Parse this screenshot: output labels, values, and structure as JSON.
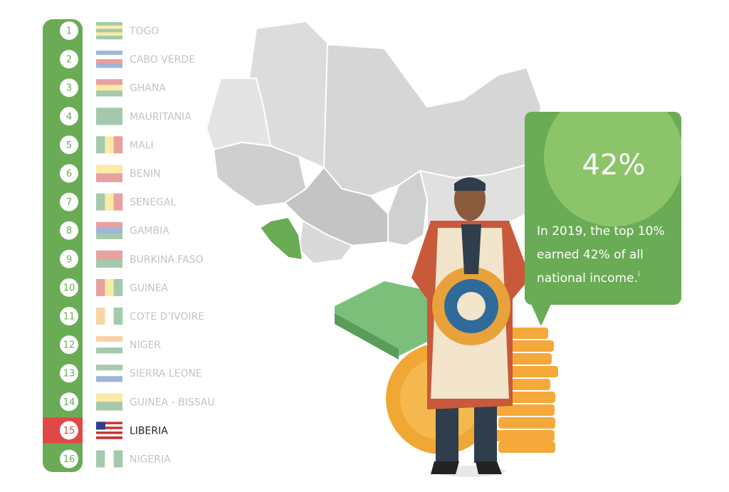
{
  "list": {
    "items": [
      {
        "rank": 1,
        "name": "TOGO"
      },
      {
        "rank": 2,
        "name": "CABO VERDE"
      },
      {
        "rank": 3,
        "name": "GHANA"
      },
      {
        "rank": 4,
        "name": "MAURITANIA"
      },
      {
        "rank": 5,
        "name": "MALI"
      },
      {
        "rank": 6,
        "name": "BENIN"
      },
      {
        "rank": 7,
        "name": "SENEGAL"
      },
      {
        "rank": 8,
        "name": "GAMBIA"
      },
      {
        "rank": 9,
        "name": "BURKINA FASO"
      },
      {
        "rank": 10,
        "name": "GUINEA"
      },
      {
        "rank": 11,
        "name": "COTE D’IVOIRE"
      },
      {
        "rank": 12,
        "name": "NIGER"
      },
      {
        "rank": 13,
        "name": "SIERRA LEONE"
      },
      {
        "rank": 14,
        "name": "GUINEA - BISSAU"
      },
      {
        "rank": 15,
        "name": "LIBERIA",
        "active": true
      },
      {
        "rank": 16,
        "name": "NIGERIA"
      }
    ]
  },
  "callout": {
    "headline": "42%",
    "lines": [
      "In 2019, the top 10%",
      "earned 42% of all",
      "national income."
    ],
    "note_marker": "i"
  }
}
